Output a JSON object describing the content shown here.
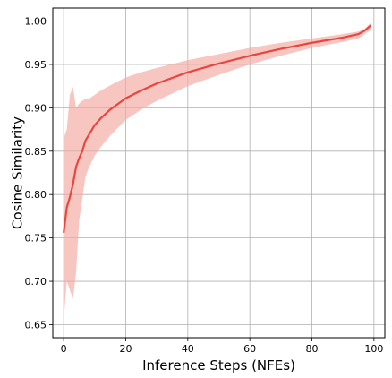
{
  "chart_data": {
    "type": "line",
    "title": "",
    "xlabel": "Inference Steps (NFEs)",
    "ylabel": "Cosine Similarity",
    "xlim": [
      -3.5,
      103.5
    ],
    "ylim": [
      0.635,
      1.015
    ],
    "grid": true,
    "x_ticks": [
      0,
      20,
      40,
      60,
      80,
      100
    ],
    "y_ticks": [
      0.65,
      0.7,
      0.75,
      0.8,
      0.85,
      0.9,
      0.95,
      1.0
    ],
    "x_tick_labels": [
      "0",
      "20",
      "40",
      "60",
      "80",
      "100"
    ],
    "y_tick_labels": [
      "0.65",
      "0.70",
      "0.75",
      "0.80",
      "0.85",
      "0.90",
      "0.95",
      "1.00"
    ],
    "colors": {
      "line": "#e8473f",
      "band": "#f4a8a0"
    },
    "series": [
      {
        "x": [
          0,
          1,
          2,
          3,
          4,
          5,
          6,
          7,
          8,
          10,
          12,
          15,
          20,
          25,
          30,
          40,
          50,
          60,
          70,
          80,
          90,
          95,
          97,
          99
        ],
        "mean": [
          0.756,
          0.785,
          0.797,
          0.812,
          0.832,
          0.842,
          0.85,
          0.862,
          0.868,
          0.88,
          0.888,
          0.898,
          0.911,
          0.92,
          0.928,
          0.941,
          0.951,
          0.96,
          0.968,
          0.975,
          0.981,
          0.985,
          0.989,
          0.995
        ],
        "upper": [
          0.865,
          0.875,
          0.915,
          0.924,
          0.9,
          0.905,
          0.908,
          0.91,
          0.91,
          0.915,
          0.92,
          0.926,
          0.935,
          0.941,
          0.946,
          0.955,
          0.962,
          0.969,
          0.975,
          0.98,
          0.985,
          0.988,
          0.991,
          0.998
        ],
        "lower": [
          0.655,
          0.7,
          0.69,
          0.68,
          0.71,
          0.77,
          0.795,
          0.82,
          0.83,
          0.845,
          0.855,
          0.868,
          0.886,
          0.898,
          0.908,
          0.925,
          0.938,
          0.95,
          0.96,
          0.969,
          0.976,
          0.98,
          0.985,
          0.99
        ]
      }
    ]
  }
}
